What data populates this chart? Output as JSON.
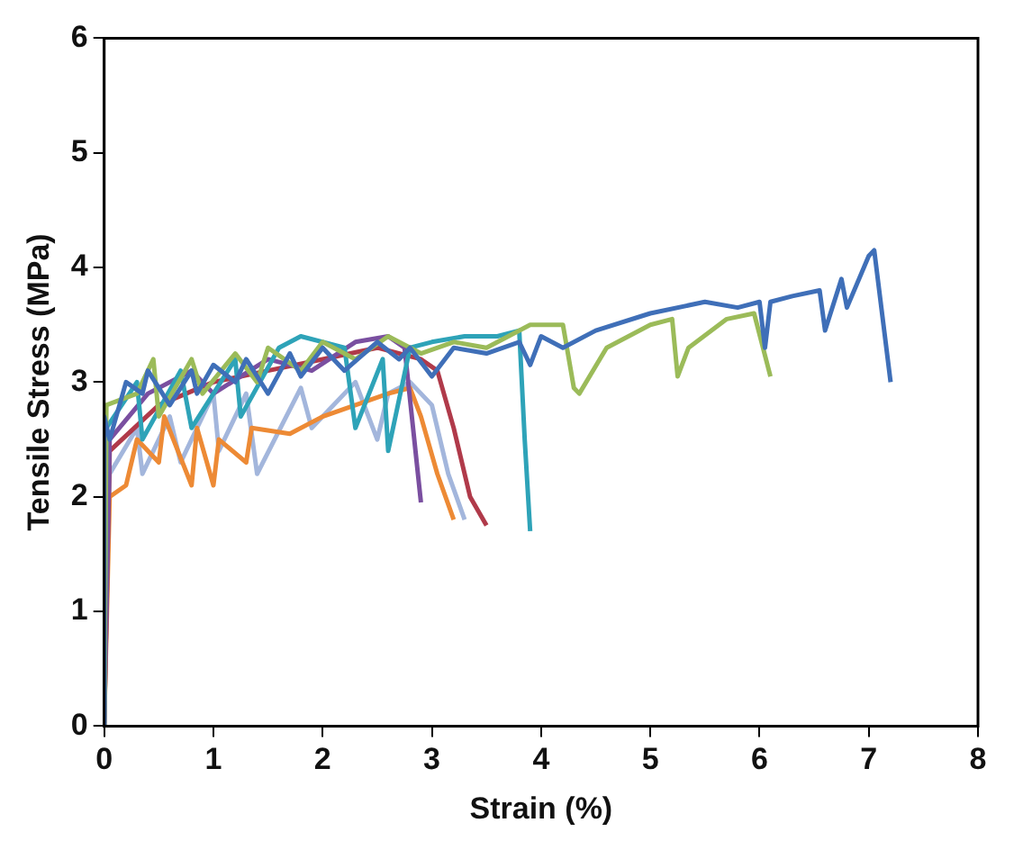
{
  "chart_data": {
    "type": "line",
    "xlabel": "Strain (%)",
    "ylabel": "Tensile Stress (MPa)",
    "xlim": [
      0,
      8
    ],
    "xticks": [
      0,
      1,
      2,
      3,
      4,
      5,
      6,
      7,
      8
    ],
    "ylim": [
      0,
      6
    ],
    "yticks": [
      0,
      1,
      2,
      3,
      4,
      5,
      6
    ],
    "grid": false,
    "legend": false,
    "marker": "none",
    "line_style": "solid",
    "series": [
      {
        "color": "#3f6fb8",
        "x": [
          0,
          0,
          0.05,
          0.2,
          0.35,
          0.4,
          0.6,
          0.8,
          0.85,
          1.0,
          1.2,
          1.3,
          1.5,
          1.7,
          1.8,
          2.0,
          2.2,
          2.5,
          2.7,
          2.8,
          3.0,
          3.2,
          3.5,
          3.8,
          3.9,
          4.0,
          4.2,
          4.5,
          5.0,
          5.5,
          5.8,
          6.0,
          6.05,
          6.1,
          6.3,
          6.55,
          6.6,
          6.75,
          6.8,
          7.0,
          7.05,
          7.2
        ],
        "values": [
          0,
          2.7,
          2.5,
          3.0,
          2.9,
          3.1,
          2.8,
          3.1,
          2.9,
          3.15,
          3.0,
          3.2,
          2.9,
          3.25,
          3.05,
          3.3,
          3.1,
          3.35,
          3.2,
          3.3,
          3.05,
          3.3,
          3.25,
          3.35,
          3.15,
          3.4,
          3.3,
          3.45,
          3.6,
          3.7,
          3.65,
          3.7,
          3.3,
          3.7,
          3.75,
          3.8,
          3.45,
          3.9,
          3.65,
          4.1,
          4.15,
          3.0
        ]
      },
      {
        "color": "#9bbb59",
        "x": [
          0,
          0.02,
          0.3,
          0.45,
          0.5,
          0.8,
          0.9,
          1.2,
          1.4,
          1.5,
          1.8,
          2.0,
          2.3,
          2.6,
          2.9,
          3.2,
          3.5,
          3.9,
          4.2,
          4.3,
          4.35,
          4.6,
          5.0,
          5.2,
          5.25,
          5.35,
          5.7,
          5.95,
          6.1
        ],
        "values": [
          0,
          2.8,
          2.9,
          3.2,
          2.7,
          3.2,
          2.9,
          3.25,
          3.0,
          3.3,
          3.1,
          3.35,
          3.2,
          3.4,
          3.25,
          3.35,
          3.3,
          3.5,
          3.5,
          2.95,
          2.9,
          3.3,
          3.5,
          3.55,
          3.05,
          3.3,
          3.55,
          3.6,
          3.05
        ]
      },
      {
        "color": "#2ea3b8",
        "x": [
          0,
          0.02,
          0.3,
          0.35,
          0.7,
          0.8,
          1.2,
          1.25,
          1.6,
          1.8,
          2.2,
          2.3,
          2.55,
          2.6,
          2.8,
          3.0,
          3.3,
          3.6,
          3.8,
          3.85,
          3.9
        ],
        "values": [
          0,
          2.6,
          3.0,
          2.5,
          3.1,
          2.6,
          3.2,
          2.7,
          3.3,
          3.4,
          3.3,
          2.6,
          3.2,
          2.4,
          3.3,
          3.35,
          3.4,
          3.4,
          3.45,
          2.5,
          1.7
        ]
      },
      {
        "color": "#7a4fa0",
        "x": [
          0,
          0.05,
          0.4,
          0.8,
          1.0,
          1.5,
          1.9,
          2.3,
          2.6,
          2.75,
          2.85,
          2.9
        ],
        "values": [
          0,
          2.5,
          2.9,
          3.1,
          2.9,
          3.2,
          3.1,
          3.35,
          3.4,
          3.3,
          2.4,
          1.95
        ]
      },
      {
        "color": "#b03a4a",
        "x": [
          0,
          0.05,
          0.5,
          1.0,
          1.5,
          2.0,
          2.5,
          2.9,
          3.05,
          3.2,
          3.35,
          3.5
        ],
        "values": [
          0,
          2.4,
          2.8,
          3.0,
          3.1,
          3.2,
          3.3,
          3.2,
          3.1,
          2.6,
          2.0,
          1.75
        ]
      },
      {
        "color": "#ed8a35",
        "x": [
          0,
          0.05,
          0.2,
          0.3,
          0.5,
          0.55,
          0.8,
          0.85,
          1.0,
          1.05,
          1.3,
          1.35,
          1.7,
          2.0,
          2.3,
          2.6,
          2.8,
          2.9,
          3.05,
          3.2
        ],
        "values": [
          0,
          2.0,
          2.1,
          2.5,
          2.3,
          2.7,
          2.1,
          2.6,
          2.1,
          2.5,
          2.3,
          2.6,
          2.55,
          2.7,
          2.8,
          2.9,
          2.95,
          2.7,
          2.2,
          1.8
        ]
      },
      {
        "color": "#a3b6dc",
        "x": [
          0,
          0.05,
          0.3,
          0.35,
          0.6,
          0.7,
          1.0,
          1.05,
          1.3,
          1.4,
          1.8,
          1.9,
          2.3,
          2.5,
          2.6,
          2.8,
          3.0,
          3.15,
          3.3
        ],
        "values": [
          0,
          2.2,
          2.6,
          2.2,
          2.7,
          2.3,
          2.9,
          2.4,
          2.9,
          2.2,
          2.95,
          2.6,
          3.0,
          2.5,
          2.9,
          3.0,
          2.8,
          2.2,
          1.8
        ]
      }
    ]
  }
}
